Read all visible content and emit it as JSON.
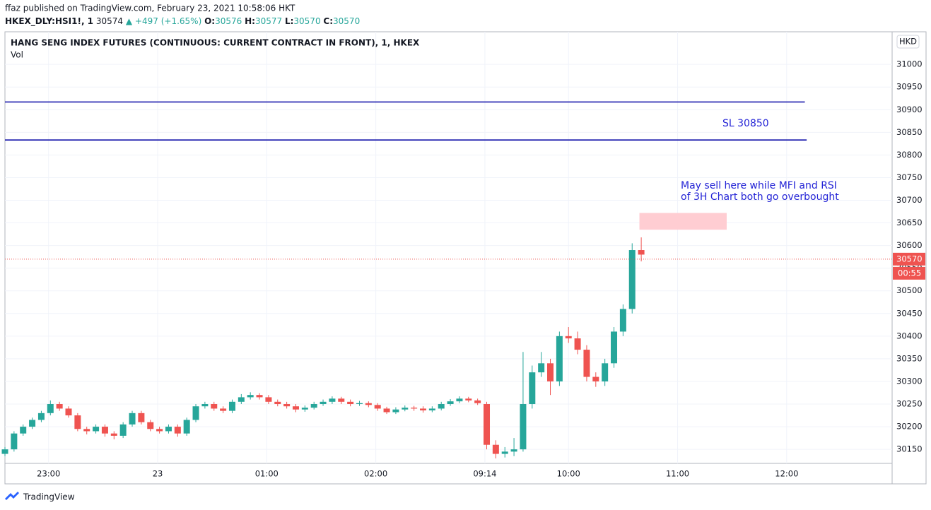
{
  "header": {
    "publisher": "ffaz published on TradingView.com, February 23, 2021 10:58:06 HKT",
    "symbol": "HKEX_DLY:HSI1!, 1",
    "last": "30574",
    "change": "▲ +497 (+1.65%)",
    "o_label": "O:",
    "o": "30576",
    "h_label": "H:",
    "h": "30577",
    "l_label": "L:",
    "l": "30570",
    "c_label": "C:",
    "c": "30570"
  },
  "footer": {
    "brand": "TradingView"
  },
  "chart_data": {
    "type": "candlestick",
    "title": "HANG SENG INDEX FUTURES (CONTINUOUS: CURRENT CONTRACT IN FRONT), 1, HKEX",
    "subtitle": "Vol",
    "currency": "HKD",
    "x": [
      0,
      5,
      10,
      15,
      20,
      25,
      30,
      35,
      40,
      45,
      50,
      55,
      60,
      65,
      70,
      75,
      80,
      85,
      90,
      95,
      100,
      105,
      110,
      115,
      120,
      125,
      130,
      135,
      140,
      145,
      150,
      155,
      160,
      165,
      170,
      175,
      180,
      185,
      190,
      195,
      200,
      205,
      210,
      215,
      220,
      225,
      230,
      235,
      240,
      245,
      250,
      255,
      260,
      265,
      270,
      275,
      280,
      285,
      290,
      295,
      300,
      305,
      310,
      315,
      320,
      325,
      330,
      335,
      340,
      345,
      350
    ],
    "open": [
      30140,
      30150,
      30185,
      30200,
      30215,
      30230,
      30250,
      30240,
      30225,
      30195,
      30190,
      30200,
      30185,
      30180,
      30205,
      30230,
      30210,
      30195,
      30190,
      30200,
      30185,
      30215,
      30245,
      30250,
      30240,
      30235,
      30255,
      30265,
      30270,
      30265,
      30255,
      30250,
      30245,
      30238,
      30242,
      30250,
      30255,
      30262,
      30255,
      30250,
      30252,
      30248,
      30240,
      30232,
      30238,
      30242,
      30240,
      30236,
      30240,
      30250,
      30256,
      30262,
      30258,
      30250,
      30160,
      30140,
      30145,
      30150,
      30250,
      30320,
      30340,
      30300,
      30400,
      30395,
      30370,
      30310,
      30300,
      30340,
      30410,
      30460,
      30590
    ],
    "high": [
      30155,
      30190,
      30205,
      30220,
      30235,
      30258,
      30255,
      30245,
      30230,
      30200,
      30205,
      30205,
      30190,
      30210,
      30235,
      30235,
      30215,
      30200,
      30205,
      30205,
      30220,
      30250,
      30255,
      30255,
      30245,
      30260,
      30272,
      30276,
      30274,
      30270,
      30260,
      30255,
      30250,
      30247,
      30255,
      30260,
      30267,
      30266,
      30260,
      30257,
      30256,
      30252,
      30244,
      30243,
      30247,
      30246,
      30245,
      30245,
      30255,
      30261,
      30267,
      30266,
      30262,
      30255,
      30170,
      30155,
      30175,
      30365,
      30335,
      30365,
      30350,
      30410,
      30420,
      30410,
      30380,
      30320,
      30350,
      30420,
      30470,
      30605,
      30618
    ],
    "low": [
      30135,
      30145,
      30180,
      30195,
      30210,
      30225,
      30235,
      30220,
      30190,
      30183,
      30185,
      30178,
      30172,
      30175,
      30200,
      30205,
      30190,
      30185,
      30185,
      30178,
      30180,
      30210,
      30240,
      30235,
      30230,
      30230,
      30250,
      30260,
      30260,
      30250,
      30245,
      30240,
      30232,
      30233,
      30238,
      30246,
      30250,
      30250,
      30245,
      30246,
      30243,
      30235,
      30228,
      30228,
      30234,
      30235,
      30231,
      30232,
      30236,
      30246,
      30252,
      30254,
      30248,
      30150,
      30130,
      30132,
      30135,
      30145,
      30240,
      30310,
      30270,
      30290,
      30385,
      30360,
      30300,
      30288,
      30290,
      30330,
      30400,
      30450,
      30565
    ],
    "close": [
      30150,
      30185,
      30200,
      30215,
      30230,
      30250,
      30240,
      30225,
      30195,
      30190,
      30200,
      30185,
      30180,
      30205,
      30230,
      30210,
      30195,
      30190,
      30200,
      30185,
      30215,
      30245,
      30250,
      30240,
      30235,
      30255,
      30265,
      30270,
      30265,
      30255,
      30250,
      30245,
      30238,
      30242,
      30250,
      30255,
      30262,
      30255,
      30250,
      30252,
      30248,
      30240,
      30232,
      30238,
      30242,
      30240,
      30236,
      30240,
      30250,
      30256,
      30262,
      30258,
      30252,
      30160,
      30140,
      30145,
      30150,
      30250,
      30320,
      30340,
      30300,
      30400,
      30395,
      30370,
      30310,
      30300,
      30340,
      30410,
      30460,
      30590,
      30580
    ],
    "up_color": "#26a69a",
    "down_color": "#ef5350",
    "xlim": [
      0,
      488
    ],
    "xticks": [
      {
        "value": 24,
        "label": "23:00"
      },
      {
        "value": 84,
        "label": "23"
      },
      {
        "value": 144,
        "label": "01:00"
      },
      {
        "value": 204,
        "label": "02:00"
      },
      {
        "value": 264,
        "label": "09:14"
      },
      {
        "value": 310,
        "label": "10:00"
      },
      {
        "value": 370,
        "label": "11:00"
      },
      {
        "value": 430,
        "label": "12:00"
      }
    ],
    "ylim": [
      30119,
      31072
    ],
    "yticks": [
      30150,
      30200,
      30250,
      30300,
      30350,
      30400,
      30450,
      30500,
      30550,
      30600,
      30650,
      30700,
      30750,
      30800,
      30850,
      30900,
      30950,
      31000
    ],
    "grid": true,
    "levels": [
      {
        "value": 30917,
        "x": [
          0,
          440
        ],
        "color": "#0c0ca8"
      },
      {
        "value": 30833,
        "x": [
          0,
          441
        ],
        "color": "#0c0ca8"
      }
    ],
    "zone": {
      "x": [
        349,
        397
      ],
      "y": [
        30635,
        30672
      ],
      "color": "#ffcdd2"
    },
    "annotations": [
      "SL 30850",
      "May sell here while MFI and RSI",
      "of 3H Chart both go overbought"
    ],
    "last_price": 30570,
    "countdown": "00:55"
  }
}
